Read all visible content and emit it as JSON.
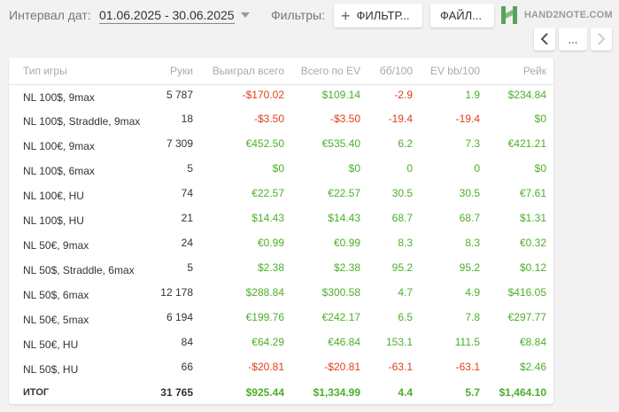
{
  "toolbar": {
    "date_label": "Интервал дат:",
    "date_range": "01.06.2025 - 30.06.2025",
    "filters_label": "Фильтры:",
    "filters_button": "ФИЛЬТР...",
    "files_button": "ФАЙЛ...",
    "logo_text": "HAND2NOTE.COM",
    "more_button": "..."
  },
  "colors": {
    "positive": "#4caf2a",
    "negative": "#e0401a",
    "logo_green": "#5aa25a"
  },
  "table": {
    "headers": [
      "Тип игры",
      "Руки",
      "Выиграл всего",
      "Всего по EV",
      "бб/100",
      "EV bb/100",
      "Рейк"
    ],
    "rows": [
      {
        "game": "NL 100$, 9max",
        "hands": "5 787",
        "won": "-$170.02",
        "ev": "$109.14",
        "bb100": "-2.9",
        "evbb100": "1.9",
        "rake": "$234.84"
      },
      {
        "game": "NL 100$, Straddle, 9max",
        "hands": "18",
        "won": "-$3.50",
        "ev": "-$3.50",
        "bb100": "-19.4",
        "evbb100": "-19.4",
        "rake": "$0"
      },
      {
        "game": "NL 100€, 9max",
        "hands": "7 309",
        "won": "€452.50",
        "ev": "€535.40",
        "bb100": "6.2",
        "evbb100": "7.3",
        "rake": "€421.21"
      },
      {
        "game": "NL 100$, 6max",
        "hands": "5",
        "won": "$0",
        "ev": "$0",
        "bb100": "0",
        "evbb100": "0",
        "rake": "$0"
      },
      {
        "game": "NL 100€, HU",
        "hands": "74",
        "won": "€22.57",
        "ev": "€22.57",
        "bb100": "30.5",
        "evbb100": "30.5",
        "rake": "€7.61"
      },
      {
        "game": "NL 100$, HU",
        "hands": "21",
        "won": "$14.43",
        "ev": "$14.43",
        "bb100": "68.7",
        "evbb100": "68.7",
        "rake": "$1.31"
      },
      {
        "game": "NL 50€, 9max",
        "hands": "24",
        "won": "€0.99",
        "ev": "€0.99",
        "bb100": "8.3",
        "evbb100": "8.3",
        "rake": "€0.32"
      },
      {
        "game": "NL 50$, Straddle, 6max",
        "hands": "5",
        "won": "$2.38",
        "ev": "$2.38",
        "bb100": "95.2",
        "evbb100": "95.2",
        "rake": "$0.12"
      },
      {
        "game": "NL 50$, 6max",
        "hands": "12 178",
        "won": "$288.84",
        "ev": "$300.58",
        "bb100": "4.7",
        "evbb100": "4.9",
        "rake": "$416.05"
      },
      {
        "game": "NL 50€, 5max",
        "hands": "6 194",
        "won": "€199.76",
        "ev": "€242.17",
        "bb100": "6.5",
        "evbb100": "7.8",
        "rake": "€297.77"
      },
      {
        "game": "NL 50€, HU",
        "hands": "84",
        "won": "€64.29",
        "ev": "€46.84",
        "bb100": "153.1",
        "evbb100": "111.5",
        "rake": "€8.84"
      },
      {
        "game": "NL 50$, HU",
        "hands": "66",
        "won": "-$20.81",
        "ev": "-$20.81",
        "bb100": "-63.1",
        "evbb100": "-63.1",
        "rake": "$2.46"
      }
    ],
    "total": {
      "game": "ИТОГ",
      "hands": "31 765",
      "won": "$925.44",
      "ev": "$1,334.99",
      "bb100": "4.4",
      "evbb100": "5.7",
      "rake": "$1,464.10"
    }
  }
}
